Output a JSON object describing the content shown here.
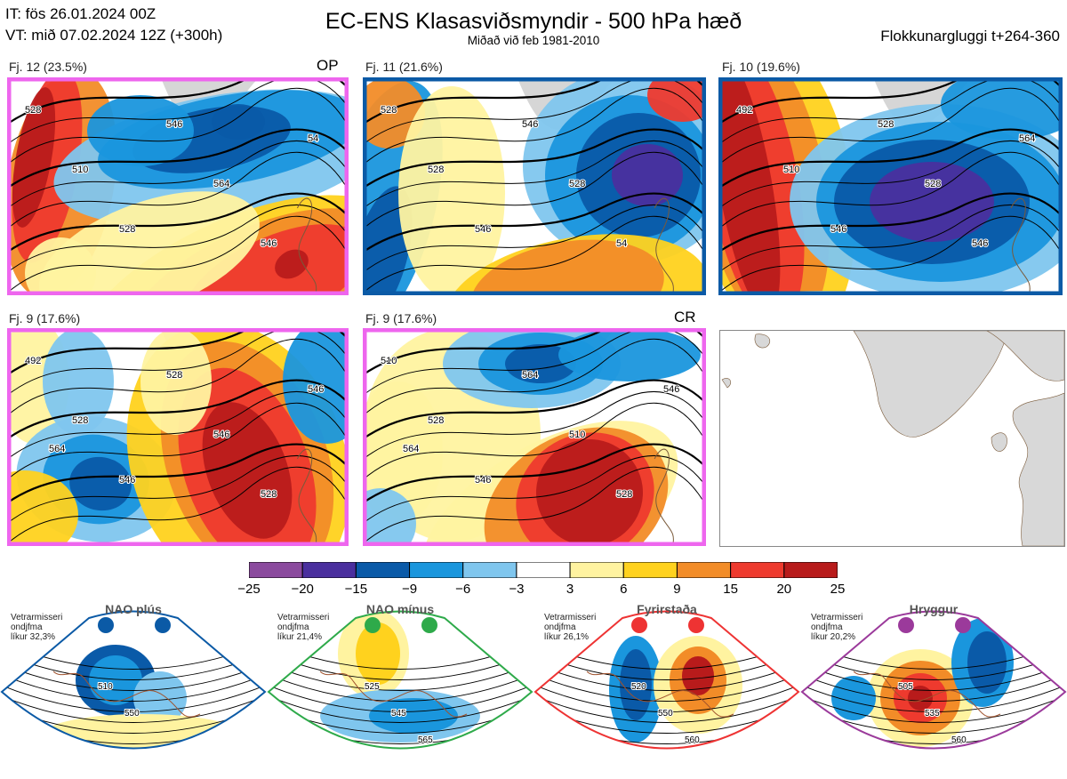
{
  "header": {
    "issue_time": "IT: fös 26.01.2024 00Z",
    "valid_time": "VT: mið 07.02.2024 12Z  (+300h)",
    "title": "EC-ENS Klasasviðsmyndir - 500 hPa hæð",
    "subtitle": "Miðað við feb 1981-2010",
    "window": "Flokkunargluggi t+264-360"
  },
  "colors": {
    "pink": "#ee66ee",
    "blue": "#0b5aa6"
  },
  "panels": [
    {
      "label": "Fj. 12 (23.5%)",
      "tag": "OP",
      "border": "#ee66ee",
      "contour_labels": [
        "528",
        "510",
        "528",
        "546",
        "564",
        "546",
        "54"
      ]
    },
    {
      "label": "Fj. 11 (21.6%)",
      "tag": "",
      "border": "#0b5aa6",
      "contour_labels": [
        "528",
        "528",
        "546",
        "546",
        "528",
        "54"
      ]
    },
    {
      "label": "Fj. 10 (19.6%)",
      "tag": "",
      "border": "#0b5aa6",
      "contour_labels": [
        "492",
        "510",
        "546",
        "528",
        "528",
        "546",
        "564"
      ]
    },
    {
      "label": "Fj. 9 (17.6%)",
      "tag": "",
      "border": "#ee66ee",
      "contour_labels": [
        "492",
        "528",
        "546",
        "528",
        "546",
        "528",
        "546",
        "564"
      ]
    },
    {
      "label": "Fj. 9 (17.6%)",
      "tag": "CR",
      "border": "#ee66ee",
      "contour_labels": [
        "510",
        "528",
        "546",
        "564",
        "510",
        "528",
        "546",
        "564"
      ]
    }
  ],
  "colorbar": {
    "ticks": [
      "−25",
      "−20",
      "−15",
      "−9",
      "−6",
      "−3",
      "3",
      "6",
      "9",
      "15",
      "20",
      "25"
    ],
    "colors": [
      "#8b4a9e",
      "#4a2f9e",
      "#0a5aa8",
      "#1a96dd",
      "#7fc6ee",
      "#ffffff",
      "#fff3a0",
      "#ffd21e",
      "#f28c28",
      "#ee3a2e",
      "#b81b1b"
    ]
  },
  "regimes": [
    {
      "name": "NAO plús",
      "note_lines": [
        "Vetrarmisseri",
        "ondjfma",
        "líkur 32,3%"
      ],
      "color": "#0b5aa6",
      "contours": [
        "510",
        "550"
      ]
    },
    {
      "name": "NAO mínus",
      "note_lines": [
        "Vetrarmisseri",
        "ondjfma",
        "líkur 21,4%"
      ],
      "color": "#2eaa4a",
      "contours": [
        "525",
        "545",
        "565"
      ]
    },
    {
      "name": "Fyrirstaða",
      "note_lines": [
        "Vetrarmisseri",
        "ondjfma",
        "líkur 26,1%"
      ],
      "color": "#ee3333",
      "contours": [
        "520",
        "550",
        "560"
      ]
    },
    {
      "name": "Hryggur",
      "note_lines": [
        "Vetrarmisseri",
        "ondjfma",
        "líkur 20,2%"
      ],
      "color": "#9b3a9b",
      "contours": [
        "505",
        "535",
        "560"
      ]
    }
  ],
  "chart_data": {
    "type": "heatmap",
    "title": "EC-ENS Klasasviðsmyndir - 500 hPa hæð",
    "subtitle": "Miðað við feb 1981-2010",
    "colorbar_bounds": [
      -25,
      -20,
      -15,
      -9,
      -6,
      -3,
      3,
      6,
      9,
      15,
      20,
      25
    ],
    "clusters": [
      {
        "name": "Fj. 12",
        "probability_pct": 23.5,
        "tag": "OP"
      },
      {
        "name": "Fj. 11",
        "probability_pct": 21.6
      },
      {
        "name": "Fj. 10",
        "probability_pct": 19.6
      },
      {
        "name": "Fj. 9",
        "probability_pct": 17.6
      },
      {
        "name": "Fj. 9",
        "probability_pct": 17.6,
        "tag": "CR"
      }
    ],
    "regimes": [
      {
        "name": "NAO plús",
        "probability_pct": 32.3
      },
      {
        "name": "NAO mínus",
        "probability_pct": 21.4
      },
      {
        "name": "Fyrirstaða",
        "probability_pct": 26.1
      },
      {
        "name": "Hryggur",
        "probability_pct": 20.2
      }
    ]
  }
}
